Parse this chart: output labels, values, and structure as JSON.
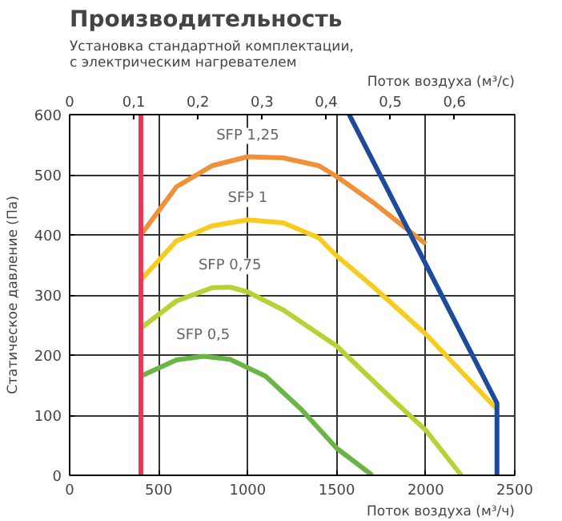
{
  "chart_data": {
    "type": "line",
    "title": "Производительность",
    "subtitle": "Установка стандартной комплектации,\nс электрическим нагревателем",
    "xlabel": "Поток воздуха (м³/ч)",
    "x2label": "Поток воздуха (м³/с)",
    "ylabel": "Статическое давление (Па)",
    "xlim": [
      0,
      2500
    ],
    "xticks": [
      0,
      500,
      1000,
      1500,
      2000,
      2500
    ],
    "ylim": [
      0,
      600
    ],
    "yticks": [
      0,
      100,
      200,
      300,
      400,
      500,
      600
    ],
    "x2lim": [
      0,
      0.694
    ],
    "x2ticks": [
      0,
      {
        "value": 0.1,
        "label": "0,1"
      },
      {
        "value": 0.2,
        "label": "0,2"
      },
      {
        "value": 0.3,
        "label": "0,3"
      },
      {
        "value": 0.4,
        "label": "0,4"
      },
      {
        "value": 0.5,
        "label": "0,5"
      },
      {
        "value": 0.6,
        "label": "0,6"
      }
    ],
    "grid": true,
    "marker": "none",
    "line_style": "solid",
    "series": [
      {
        "name": "SFP 1,25",
        "color": "#f0913a",
        "x": [
          400,
          600,
          800,
          1000,
          1200,
          1400,
          1500,
          1700,
          2000
        ],
        "values": [
          400,
          480,
          515,
          530,
          528,
          515,
          497,
          455,
          385
        ]
      },
      {
        "name": "SFP 1",
        "color": "#f7cc1c",
        "x": [
          400,
          600,
          800,
          1000,
          1200,
          1400,
          1500,
          1700,
          2000,
          2400
        ],
        "values": [
          325,
          390,
          415,
          425,
          420,
          395,
          365,
          315,
          235,
          110
        ]
      },
      {
        "name": "SFP 0,75",
        "color": "#b5d334",
        "x": [
          400,
          600,
          800,
          900,
          1000,
          1200,
          1500,
          1800,
          2000,
          2200
        ],
        "values": [
          245,
          290,
          312,
          313,
          305,
          275,
          215,
          130,
          75,
          0
        ]
      },
      {
        "name": "SFP 0,5",
        "color": "#6ab545",
        "x": [
          400,
          600,
          750,
          900,
          1100,
          1300,
          1500,
          1700
        ],
        "values": [
          165,
          192,
          198,
          193,
          165,
          110,
          45,
          0
        ]
      },
      {
        "color": "#e8385a",
        "x": [
          400,
          400
        ],
        "values": [
          0,
          600
        ]
      },
      {
        "color": "#1d4a9a",
        "x": [
          1570,
          2400,
          2400
        ],
        "values": [
          600,
          120,
          0
        ]
      }
    ]
  }
}
